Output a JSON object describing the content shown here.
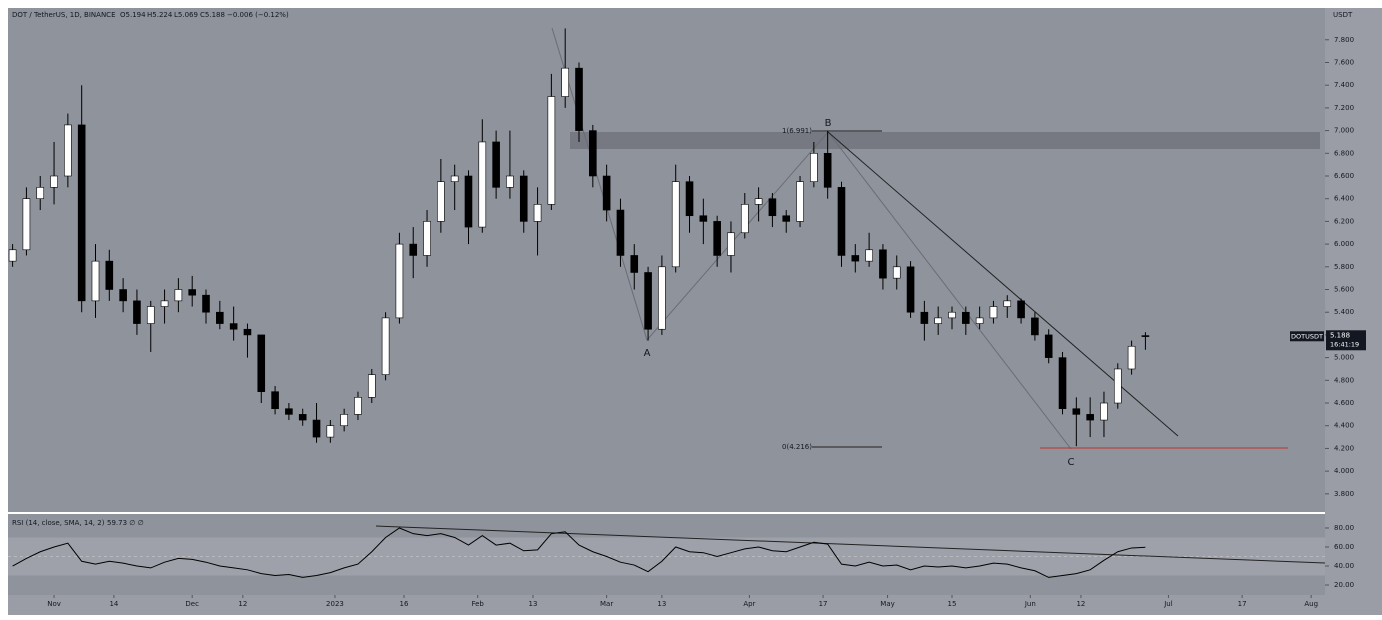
{
  "header": {
    "symbol": "DOT / TetherUS, 1D, BINANCE",
    "open": "O5.194",
    "high": "H5.224",
    "low": "L5.069",
    "close": "C5.188",
    "change": "−0.006 (−0.12%)",
    "currency": "USDT"
  },
  "chart_data": [
    {
      "type": "candlestick",
      "x": [
        0,
        3,
        6,
        9,
        12,
        15,
        18,
        21,
        24,
        27,
        30,
        33,
        36,
        39,
        42,
        45,
        48,
        51,
        54,
        57,
        60,
        63,
        66,
        69,
        72,
        75,
        78,
        81,
        84,
        87,
        90,
        93,
        96,
        99,
        102,
        105,
        108,
        111,
        114,
        117,
        120,
        123,
        126,
        129,
        132,
        135,
        138,
        141,
        144,
        147,
        150,
        153,
        156,
        159,
        162,
        165,
        168,
        171,
        174,
        177,
        180,
        183,
        186,
        189,
        192,
        195,
        198,
        201,
        204,
        207,
        210,
        213,
        216,
        219,
        222,
        225,
        228,
        231,
        234,
        237,
        240,
        243,
        246
      ],
      "open": [
        5.85,
        5.95,
        6.4,
        6.5,
        6.6,
        7.05,
        5.5,
        5.85,
        5.6,
        5.5,
        5.3,
        5.45,
        5.5,
        5.6,
        5.55,
        5.4,
        5.3,
        5.25,
        5.2,
        4.7,
        4.55,
        4.5,
        4.45,
        4.3,
        4.4,
        4.5,
        4.65,
        4.85,
        5.35,
        6.0,
        5.9,
        6.2,
        6.55,
        6.6,
        6.15,
        6.9,
        6.5,
        6.6,
        6.2,
        6.35,
        7.3,
        7.55,
        7.0,
        6.6,
        6.3,
        5.9,
        5.75,
        5.25,
        5.8,
        6.55,
        6.25,
        6.2,
        5.9,
        6.1,
        6.35,
        6.4,
        6.25,
        6.2,
        6.55,
        6.8,
        6.5,
        5.9,
        5.85,
        5.95,
        5.7,
        5.8,
        5.4,
        5.3,
        5.35,
        5.4,
        5.3,
        5.35,
        5.45,
        5.5,
        5.35,
        5.2,
        5.0,
        4.55,
        4.5,
        4.45,
        4.6,
        4.9,
        5.194
      ],
      "high": [
        6.0,
        6.5,
        6.6,
        6.9,
        7.15,
        7.4,
        6.0,
        5.95,
        5.7,
        5.6,
        5.5,
        5.6,
        5.7,
        5.72,
        5.6,
        5.5,
        5.45,
        5.3,
        5.2,
        4.75,
        4.6,
        4.55,
        4.6,
        4.45,
        4.55,
        4.7,
        4.9,
        5.4,
        6.1,
        6.15,
        6.3,
        6.75,
        6.7,
        6.65,
        7.1,
        7.0,
        7.0,
        6.65,
        6.5,
        7.5,
        7.9,
        7.6,
        7.05,
        6.7,
        6.4,
        6.0,
        5.8,
        5.9,
        6.7,
        6.6,
        6.4,
        6.25,
        6.2,
        6.45,
        6.5,
        6.45,
        6.3,
        6.6,
        6.9,
        7.0,
        6.55,
        6.0,
        6.1,
        6.0,
        5.9,
        5.85,
        5.5,
        5.45,
        5.45,
        5.45,
        5.45,
        5.5,
        5.55,
        5.52,
        5.4,
        5.25,
        5.05,
        4.65,
        4.65,
        4.7,
        4.95,
        5.15,
        5.224
      ],
      "low": [
        5.8,
        5.9,
        6.3,
        6.35,
        6.5,
        5.4,
        5.35,
        5.5,
        5.4,
        5.2,
        5.05,
        5.3,
        5.4,
        5.45,
        5.3,
        5.25,
        5.15,
        5.0,
        4.6,
        4.5,
        4.45,
        4.4,
        4.25,
        4.25,
        4.35,
        4.45,
        4.6,
        4.8,
        5.3,
        5.7,
        5.8,
        6.1,
        6.3,
        6.0,
        6.1,
        6.4,
        6.4,
        6.1,
        5.9,
        6.3,
        7.2,
        6.9,
        6.5,
        6.2,
        5.8,
        5.6,
        5.15,
        5.2,
        5.75,
        6.1,
        6.0,
        5.8,
        5.75,
        6.05,
        6.2,
        6.15,
        6.1,
        6.15,
        6.5,
        6.4,
        5.8,
        5.75,
        5.8,
        5.6,
        5.6,
        5.35,
        5.15,
        5.2,
        5.25,
        5.2,
        5.25,
        5.3,
        5.35,
        5.3,
        5.15,
        4.95,
        4.5,
        4.22,
        4.3,
        4.3,
        4.55,
        4.85,
        5.069
      ],
      "close": [
        5.95,
        6.4,
        6.5,
        6.6,
        7.05,
        5.5,
        5.85,
        5.6,
        5.5,
        5.3,
        5.45,
        5.5,
        5.6,
        5.55,
        5.4,
        5.3,
        5.25,
        5.2,
        4.7,
        4.55,
        4.5,
        4.45,
        4.3,
        4.4,
        4.5,
        4.65,
        4.85,
        5.35,
        6.0,
        5.9,
        6.2,
        6.55,
        6.6,
        6.15,
        6.9,
        6.5,
        6.6,
        6.2,
        6.35,
        7.3,
        7.55,
        7.0,
        6.6,
        6.3,
        5.9,
        5.75,
        5.25,
        5.8,
        6.55,
        6.25,
        6.2,
        5.9,
        6.1,
        6.35,
        6.4,
        6.25,
        6.2,
        6.55,
        6.8,
        6.5,
        5.9,
        5.85,
        5.95,
        5.7,
        5.8,
        5.4,
        5.3,
        5.35,
        5.4,
        5.3,
        5.35,
        5.45,
        5.5,
        5.35,
        5.2,
        5.0,
        4.55,
        4.5,
        4.45,
        4.6,
        4.9,
        5.1,
        5.188
      ],
      "up_color": "#ffffff",
      "down_color": "#000000",
      "xlim": [
        -1,
        285
      ],
      "ylim": [
        3.64,
        8.08
      ],
      "yticks": [
        {
          "value": 3.8,
          "label": "3.800"
        },
        {
          "value": 4.0,
          "label": "4.000"
        },
        {
          "value": 4.2,
          "label": "4.200"
        },
        {
          "value": 4.4,
          "label": "4.400"
        },
        {
          "value": 4.6,
          "label": "4.600"
        },
        {
          "value": 4.8,
          "label": "4.800"
        },
        {
          "value": 5.0,
          "label": "5.000"
        },
        {
          "value": 5.2,
          "label": "5.200"
        },
        {
          "value": 5.4,
          "label": "5.400"
        },
        {
          "value": 5.6,
          "label": "5.600"
        },
        {
          "value": 5.8,
          "label": "5.800"
        },
        {
          "value": 6.0,
          "label": "6.000"
        },
        {
          "value": 6.2,
          "label": "6.200"
        },
        {
          "value": 6.4,
          "label": "6.400"
        },
        {
          "value": 6.6,
          "label": "6.600"
        },
        {
          "value": 6.8,
          "label": "6.800"
        },
        {
          "value": 7.0,
          "label": "7.000"
        },
        {
          "value": 7.2,
          "label": "7.200"
        },
        {
          "value": 7.4,
          "label": "7.400"
        },
        {
          "value": 7.6,
          "label": "7.600"
        },
        {
          "value": 7.8,
          "label": "7.800"
        }
      ],
      "xticks": [
        {
          "value": 9,
          "label": "Nov"
        },
        {
          "value": 22,
          "label": "14"
        },
        {
          "value": 39,
          "label": "Dec"
        },
        {
          "value": 50,
          "label": "12"
        },
        {
          "value": 70,
          "label": "2023"
        },
        {
          "value": 85,
          "label": "16"
        },
        {
          "value": 101,
          "label": "Feb"
        },
        {
          "value": 113,
          "label": "13"
        },
        {
          "value": 129,
          "label": "Mar"
        },
        {
          "value": 141,
          "label": "13"
        },
        {
          "value": 160,
          "label": "Apr"
        },
        {
          "value": 176,
          "label": "17"
        },
        {
          "value": 190,
          "label": "May"
        },
        {
          "value": 204,
          "label": "15"
        },
        {
          "value": 221,
          "label": "Jun"
        },
        {
          "value": 232,
          "label": "12"
        },
        {
          "value": 251,
          "label": "Jul"
        },
        {
          "value": 267,
          "label": "17"
        },
        {
          "value": 282,
          "label": "Aug"
        }
      ],
      "annotations": [
        "A",
        "B",
        "C",
        "1(6.991)",
        "0(4.216)"
      ],
      "price_tag": {
        "symbol": "DOTUSDT",
        "countdown": "16:41:19"
      }
    },
    {
      "type": "line",
      "title": "RSI (14, close, SMA, 14, 2)",
      "last_label": "59.73 ∅ ∅",
      "color": "#000000",
      "values": [
        40,
        48,
        55,
        60,
        64,
        45,
        42,
        45,
        43,
        40,
        38,
        44,
        48,
        47,
        44,
        40,
        38,
        36,
        32,
        30,
        31,
        28,
        30,
        33,
        38,
        42,
        55,
        70,
        80,
        74,
        72,
        74,
        70,
        62,
        72,
        62,
        64,
        56,
        57,
        74,
        76,
        62,
        55,
        50,
        44,
        41,
        34,
        45,
        60,
        55,
        54,
        50,
        54,
        58,
        60,
        56,
        55,
        60,
        65,
        63,
        42,
        40,
        44,
        40,
        41,
        36,
        40,
        39,
        40,
        38,
        40,
        43,
        42,
        38,
        35,
        28,
        30,
        32,
        36,
        46,
        55,
        59,
        59.73
      ],
      "ylim": [
        9.5,
        94.7
      ],
      "yticks": [
        {
          "value": 20,
          "label": "20.00"
        },
        {
          "value": 40,
          "label": "40.00"
        },
        {
          "value": 60,
          "label": "60.00"
        },
        {
          "value": 80,
          "label": "80.00"
        }
      ]
    }
  ]
}
